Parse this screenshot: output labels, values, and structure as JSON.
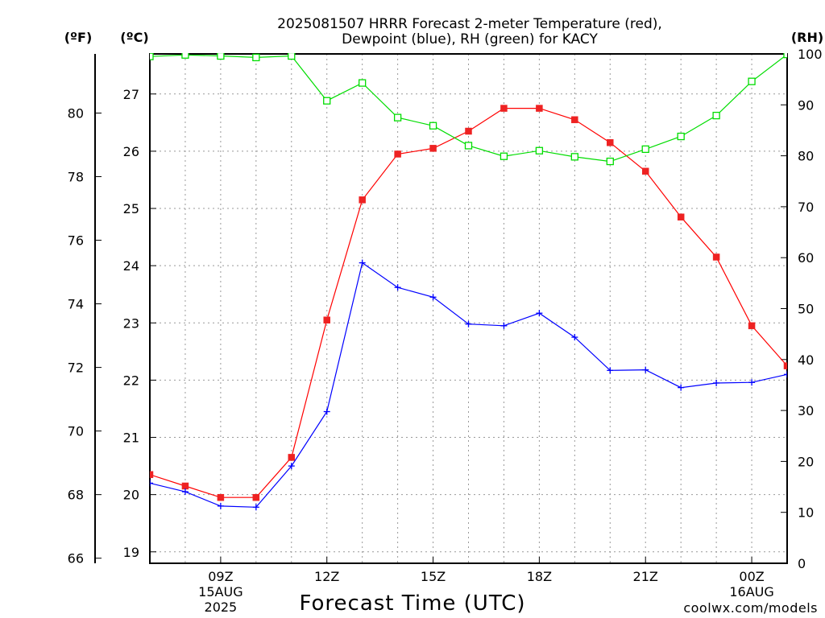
{
  "chart_data": {
    "type": "line",
    "title_line1": "2025081507 HRRR Forecast 2-meter Temperature (red),",
    "title_line2": "Dewpoint (blue), RH (green) for KACY",
    "xlabel": "Forecast Time (UTC)",
    "unit_f": "(ºF)",
    "unit_c": "(ºC)",
    "unit_rh": "(RH)",
    "watermark": "coolwx.com/models",
    "x_hours": [
      7,
      8,
      9,
      10,
      11,
      12,
      13,
      14,
      15,
      16,
      17,
      18,
      19,
      20,
      21,
      22,
      23,
      24,
      25
    ],
    "x_ticks": [
      {
        "hour": 9,
        "label": "09Z",
        "date": "15AUG",
        "year": "2025"
      },
      {
        "hour": 12,
        "label": "12Z",
        "date": "",
        "year": ""
      },
      {
        "hour": 15,
        "label": "15Z",
        "date": "",
        "year": ""
      },
      {
        "hour": 18,
        "label": "18Z",
        "date": "",
        "year": ""
      },
      {
        "hour": 21,
        "label": "21Z",
        "date": "",
        "year": ""
      },
      {
        "hour": 24,
        "label": "00Z",
        "date": "16AUG",
        "year": ""
      }
    ],
    "xlim": [
      7,
      25
    ],
    "celsius_ylim": [
      18.8,
      27.7
    ],
    "celsius_ticks": [
      19,
      20,
      21,
      22,
      23,
      24,
      25,
      26,
      27
    ],
    "fahrenheit_ticks": [
      66,
      68,
      70,
      72,
      74,
      76,
      78,
      80
    ],
    "rh_ylim": [
      0,
      100
    ],
    "rh_ticks": [
      0,
      10,
      20,
      30,
      40,
      50,
      60,
      70,
      80,
      90,
      100
    ],
    "grid": true,
    "series": [
      {
        "name": "Temperature",
        "color": "#ff0000",
        "marker": "filled-square",
        "axis": "celsius",
        "values": [
          20.35,
          20.15,
          19.95,
          19.95,
          20.65,
          23.05,
          25.15,
          25.95,
          26.05,
          26.35,
          26.75,
          26.75,
          26.55,
          26.15,
          25.65,
          24.85,
          24.15,
          22.95,
          22.25
        ]
      },
      {
        "name": "Dewpoint",
        "color": "#0000ff",
        "marker": "plus",
        "axis": "celsius",
        "values": [
          20.2,
          20.05,
          19.8,
          19.78,
          20.5,
          21.45,
          24.05,
          23.62,
          23.45,
          22.98,
          22.95,
          23.17,
          22.75,
          22.17,
          22.18,
          21.87,
          21.95,
          21.96,
          22.1
        ]
      },
      {
        "name": "RH",
        "color": "#00dd00",
        "marker": "open-square",
        "axis": "rh",
        "values": [
          99.5,
          99.8,
          99.6,
          99.3,
          99.6,
          90.8,
          94.3,
          87.5,
          85.9,
          82.0,
          79.9,
          81.0,
          79.8,
          78.9,
          81.3,
          83.8,
          87.9,
          94.6,
          99.9
        ]
      }
    ]
  }
}
